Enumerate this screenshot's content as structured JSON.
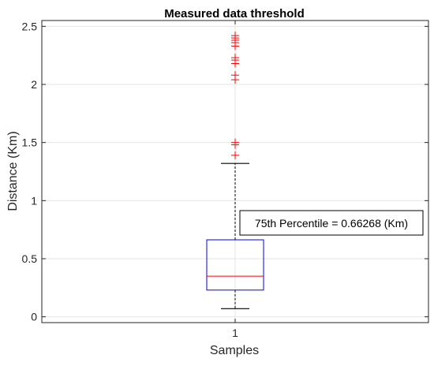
{
  "chart_data": {
    "type": "box",
    "title": "Measured data threshold",
    "xlabel": "Samples",
    "ylabel": "Distance (Km)",
    "categories": [
      "1"
    ],
    "ylim": [
      -0.05,
      2.55
    ],
    "yticks": [
      0,
      0.5,
      1,
      1.5,
      2,
      2.5
    ],
    "ytick_labels": [
      "0",
      "0.5",
      "1",
      "1.5",
      "2",
      "2.5"
    ],
    "grid": true,
    "box": {
      "whisker_low": 0.07,
      "q1": 0.23,
      "median": 0.35,
      "q3": 0.66268,
      "whisker_high": 1.32
    },
    "outliers": [
      1.39,
      1.48,
      1.5,
      2.04,
      2.08,
      2.18,
      2.21,
      2.23,
      2.33,
      2.36,
      2.38,
      2.4,
      2.42
    ],
    "annotation": "75th Percentile = 0.66268 (Km)",
    "colors": {
      "box": "#0000ff",
      "median": "#ff0000",
      "outlier": "#ff0000",
      "whisker": "#000000",
      "grid": "#e6e6e6",
      "axes": "#262626"
    }
  }
}
